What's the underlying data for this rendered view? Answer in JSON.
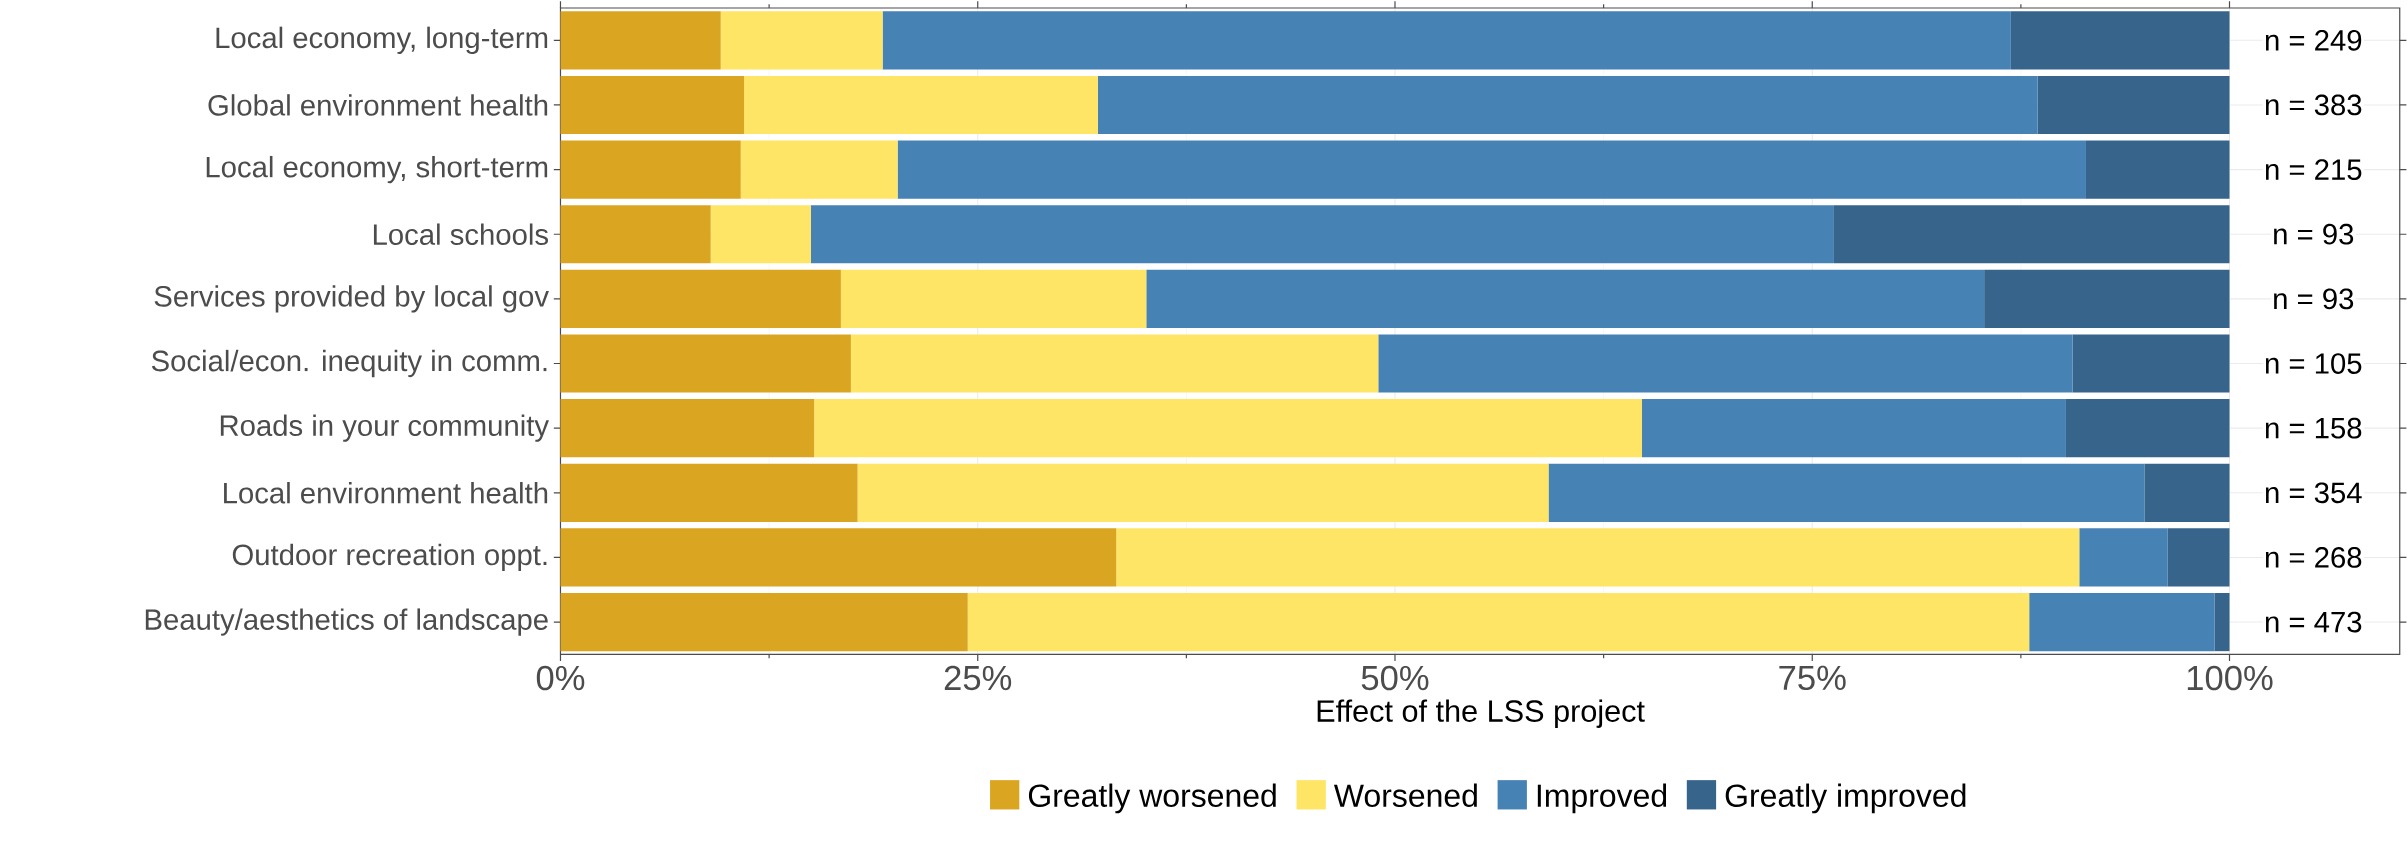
{
  "chart_data": {
    "type": "bar",
    "orientation": "horizontal",
    "stacked": true,
    "xlabel": "Effect of the LSS project",
    "categories": [
      "Local economy, long-term",
      "Global environment health",
      "Local economy, short-term",
      "Local schools",
      "Services provided by local gov",
      "Social/econ. inequity in comm.",
      "Roads in your community",
      "Local environment health",
      "Outdoor recreation oppt.",
      "Beauty/aesthetics of landscape"
    ],
    "series": [
      {
        "name": "Greatly worsened",
        "color": "#daa520",
        "values": [
          9.6,
          11.0,
          10.8,
          9.0,
          16.8,
          17.4,
          15.2,
          17.8,
          33.3,
          24.4
        ]
      },
      {
        "name": "Worsened",
        "color": "#fee566",
        "values": [
          9.7,
          21.2,
          9.4,
          6.0,
          18.3,
          31.6,
          49.6,
          41.4,
          57.7,
          63.6
        ]
      },
      {
        "name": "Improved",
        "color": "#4682b4",
        "values": [
          67.6,
          56.3,
          71.2,
          61.3,
          50.2,
          41.6,
          25.4,
          35.7,
          5.3,
          11.1
        ]
      },
      {
        "name": "Greatly improved",
        "color": "#36648b",
        "values": [
          13.1,
          11.5,
          8.6,
          23.7,
          14.7,
          9.4,
          9.8,
          5.1,
          3.7,
          0.9
        ]
      }
    ],
    "xlim": [
      0,
      110.2
    ],
    "xticks": [
      {
        "value": 0,
        "label": "0%"
      },
      {
        "value": 25,
        "label": "25%"
      },
      {
        "value": 50,
        "label": "50%"
      },
      {
        "value": 75,
        "label": "75%"
      },
      {
        "value": 100,
        "label": "100%"
      }
    ],
    "annotations": [
      "n = 249",
      "n = 383",
      "n = 215",
      "n = 93",
      "n = 93",
      "n = 105",
      "n = 158",
      "n = 354",
      "n = 268",
      "n = 473"
    ],
    "grid": true,
    "legend": "bottom"
  }
}
